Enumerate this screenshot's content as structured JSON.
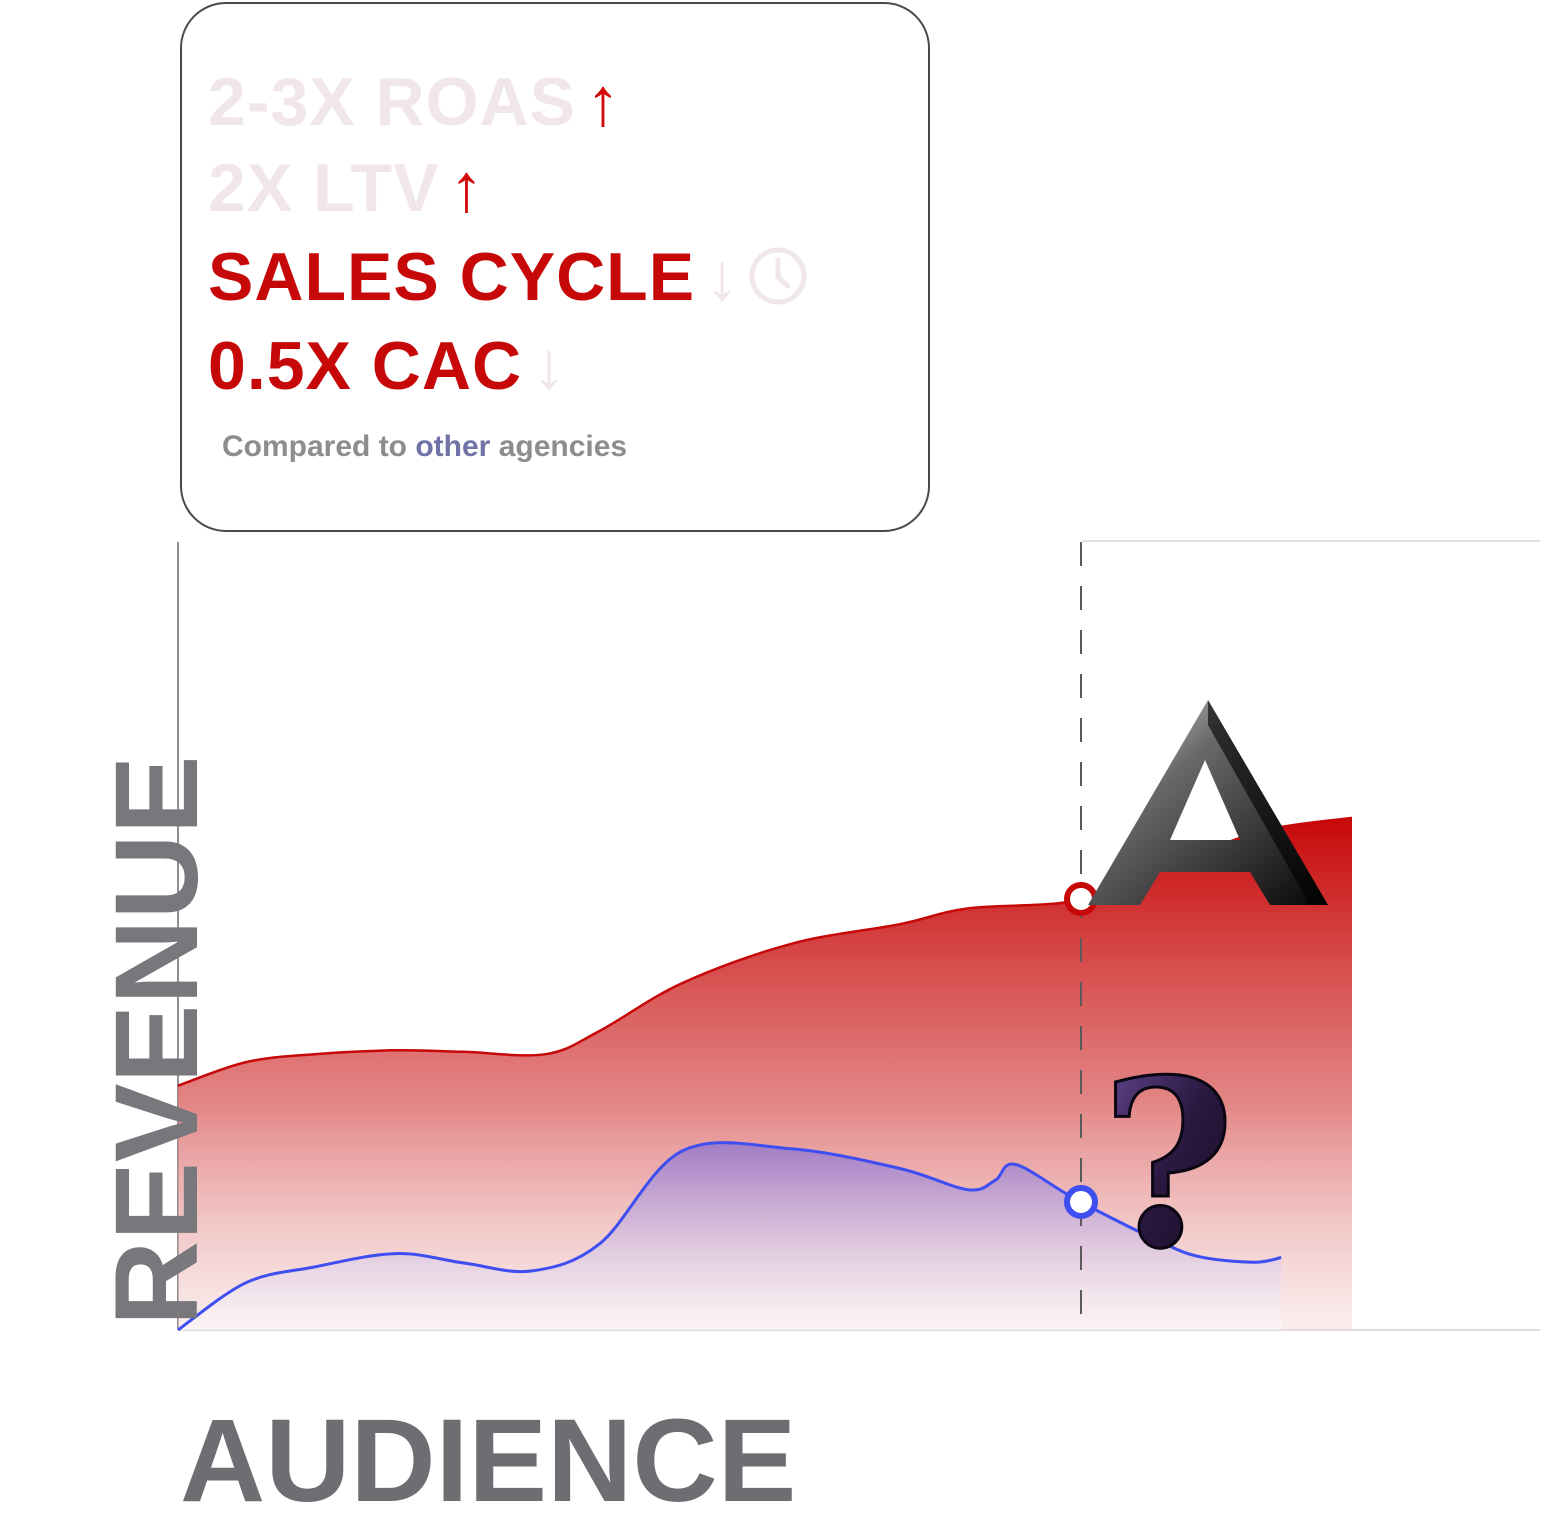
{
  "card": {
    "lines": [
      {
        "text": "2-3X  ROAS",
        "arrow": "↑"
      },
      {
        "text": "2X  LTV",
        "arrow": "↑"
      },
      {
        "text": "SALES CYCLE",
        "arrow": "↓"
      },
      {
        "text": "0.5X  CAC",
        "arrow": "↓"
      }
    ],
    "note_prefix": "Compared to ",
    "note_highlight": "other",
    "note_suffix": " agencies",
    "icon": "clock-icon"
  },
  "chart_data": {
    "type": "area",
    "xlabel": "AUDIENCE",
    "ylabel": "REVENUE",
    "x_range": [
      0,
      100
    ],
    "y_range": [
      0,
      100
    ],
    "grid": false,
    "series": [
      {
        "color": "#c70808",
        "marker_icon": "a-logo-icon",
        "x": [
          0,
          5,
          10,
          16,
          21,
          27,
          31,
          37,
          45,
          53,
          58,
          66,
          72,
          75,
          80,
          86.2
        ],
        "y": [
          31,
          34,
          35,
          35.5,
          35.3,
          35,
          38,
          44,
          49,
          51.5,
          53.5,
          54.5,
          58.5,
          60.5,
          63.5,
          65
        ]
      },
      {
        "color": "#3f4ef0",
        "marker_icon": "question-mark-icon",
        "x": [
          0,
          5,
          10,
          16,
          21,
          26,
          31,
          37,
          45,
          53,
          58,
          60,
          61.5,
          66,
          72,
          75,
          79,
          81
        ],
        "y": [
          0,
          6,
          8,
          9.7,
          8.5,
          7.5,
          11,
          22.7,
          23,
          20.5,
          17.8,
          19,
          21,
          16.5,
          11.3,
          9.3,
          8.6,
          9.2
        ]
      }
    ],
    "marker_x": 66.3
  }
}
